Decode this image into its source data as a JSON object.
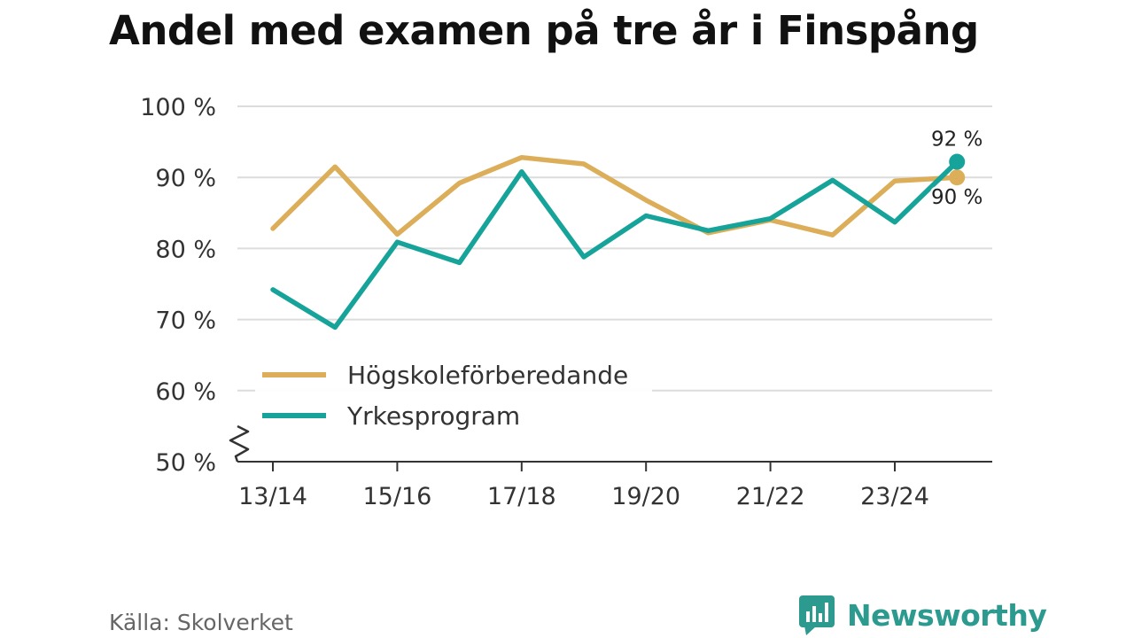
{
  "title": "Andel med examen på tre år i Finspång",
  "source": "Källa: Skolverket",
  "brand": {
    "name": "Newsworthy",
    "icon": "newsworthy-logo-icon",
    "color": "#2c9a8f"
  },
  "chart_data": {
    "type": "line",
    "title": "Andel med examen på tre år i Finspång",
    "xlabel": "",
    "ylabel": "",
    "ylim": [
      50,
      100
    ],
    "y_ticks": [
      50,
      60,
      70,
      80,
      90,
      100
    ],
    "y_tick_labels": [
      "50 %",
      "60 %",
      "70 %",
      "80 %",
      "90 %",
      "100 %"
    ],
    "axis_break": true,
    "grid": true,
    "x": [
      "13/14",
      "14/15",
      "15/16",
      "16/17",
      "17/18",
      "18/19",
      "19/20",
      "20/21",
      "21/22",
      "22/23",
      "23/24",
      "24/25"
    ],
    "x_tick_labels": [
      "13/14",
      "15/16",
      "17/18",
      "19/20",
      "21/22",
      "23/24"
    ],
    "legend_position": "lower-left",
    "series": [
      {
        "name": "Högskoleförberedande",
        "color": "#dcae5a",
        "values": [
          82.8,
          91.5,
          82.0,
          89.2,
          92.8,
          91.9,
          86.8,
          82.2,
          84.0,
          81.9,
          89.5,
          90.0
        ],
        "end_label": "90 %"
      },
      {
        "name": "Yrkesprogram",
        "color": "#16a399",
        "values": [
          74.2,
          68.9,
          80.9,
          78.0,
          90.8,
          78.8,
          84.6,
          82.5,
          84.2,
          89.6,
          83.7,
          92.2
        ],
        "end_label": "92 %"
      }
    ]
  }
}
